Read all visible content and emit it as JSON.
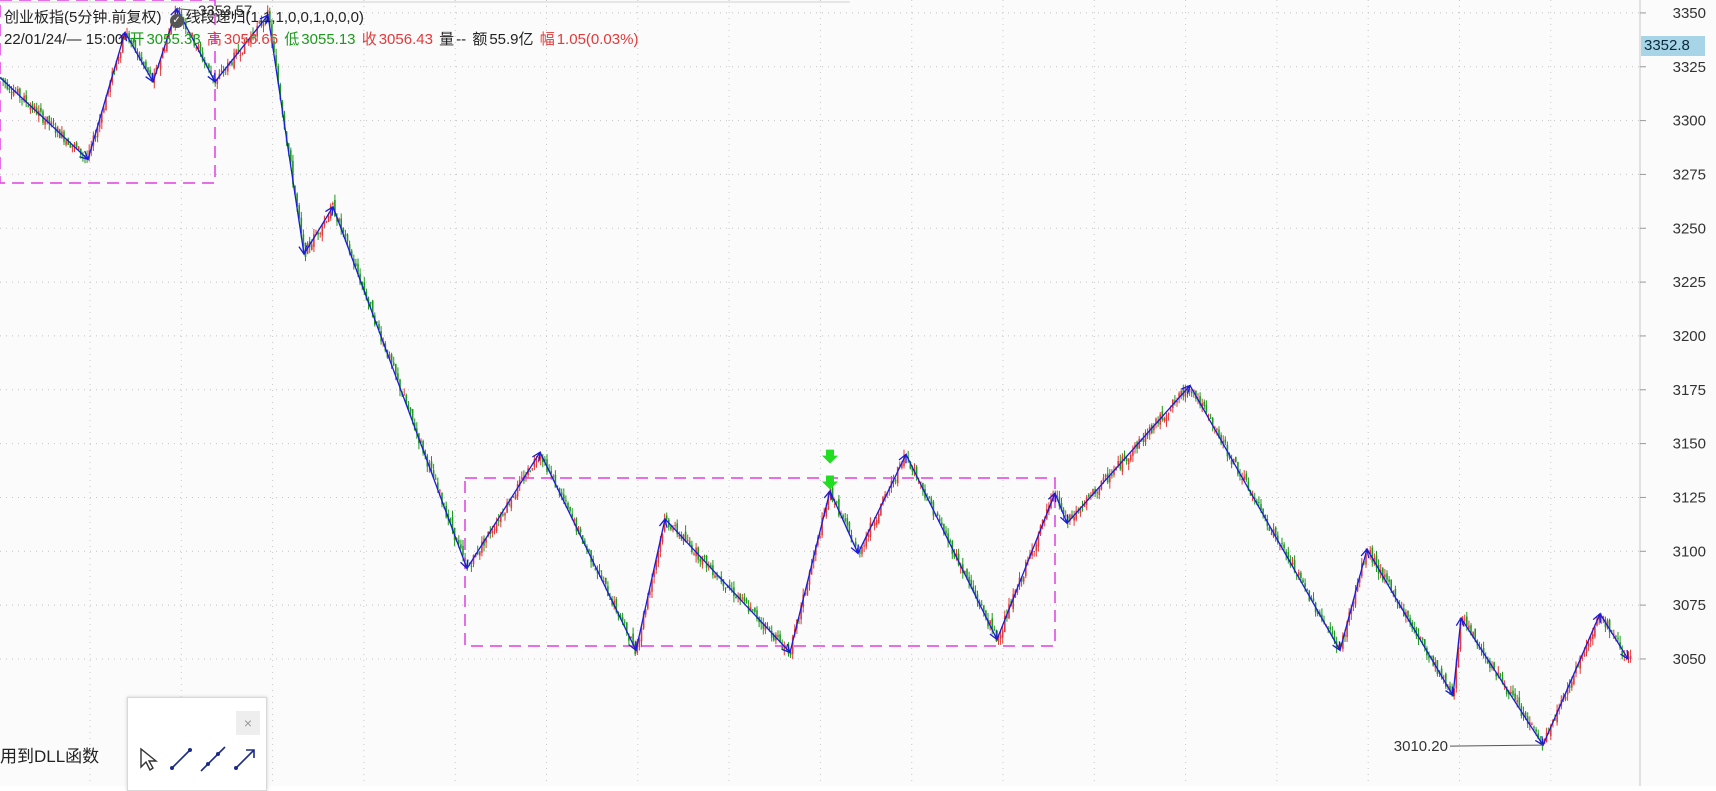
{
  "header": {
    "title": "创业板指(5分钟.前复权)",
    "indicator": "线段递归(1,1,1,0,0,1,0,0,0)",
    "datetime": "22/01/24/— 15:00",
    "open_label": "开",
    "open": "3055.33",
    "high_label": "高",
    "high": "3056.66",
    "low_label": "低",
    "low": "3055.13",
    "close_label": "收",
    "close": "3056.43",
    "volume_label": "量",
    "volume": "--",
    "amount_label": "额",
    "amount": "55.9亿",
    "amp_label": "幅",
    "amp": "1.05(0.03%)"
  },
  "price_tag": "3352.8",
  "tool_panel": {
    "dll_text": "用到DLL函数",
    "close_symbol": "×"
  },
  "colors": {
    "up": "#e23a3a",
    "down": "#1d9a1d",
    "segment": "#1b1bd8",
    "box": "#e040e0",
    "signal": "#22dd22"
  },
  "chart_data": {
    "type": "line",
    "ylim": [
      2991,
      3356
    ],
    "y_ticks": [
      3050,
      3075,
      3100,
      3125,
      3150,
      3175,
      3200,
      3225,
      3250,
      3275,
      3300,
      3325,
      3350
    ],
    "y_tick_labels": [
      "3050",
      "3075",
      "3100",
      "3125",
      "3150",
      "3175",
      "3200",
      "3225",
      "3250",
      "3275",
      "3300",
      "3325",
      "3350"
    ],
    "xlim": [
      0,
      1640
    ],
    "pivots": [
      {
        "x": 0,
        "y": 3320
      },
      {
        "x": 88,
        "y": 3282
      },
      {
        "x": 125,
        "y": 3341
      },
      {
        "x": 153,
        "y": 3318
      },
      {
        "x": 177,
        "y": 3352
      },
      {
        "x": 215,
        "y": 3318
      },
      {
        "x": 268,
        "y": 3349
      },
      {
        "x": 304,
        "y": 3238
      },
      {
        "x": 333,
        "y": 3260
      },
      {
        "x": 467,
        "y": 3092
      },
      {
        "x": 540,
        "y": 3146
      },
      {
        "x": 636,
        "y": 3054
      },
      {
        "x": 665,
        "y": 3115
      },
      {
        "x": 790,
        "y": 3053
      },
      {
        "x": 830,
        "y": 3128
      },
      {
        "x": 858,
        "y": 3099
      },
      {
        "x": 906,
        "y": 3145
      },
      {
        "x": 997,
        "y": 3059
      },
      {
        "x": 1055,
        "y": 3127
      },
      {
        "x": 1067,
        "y": 3113
      },
      {
        "x": 1190,
        "y": 3177
      },
      {
        "x": 1340,
        "y": 3054
      },
      {
        "x": 1367,
        "y": 3101
      },
      {
        "x": 1453,
        "y": 3033
      },
      {
        "x": 1461,
        "y": 3069
      },
      {
        "x": 1543,
        "y": 3010
      },
      {
        "x": 1600,
        "y": 3071
      },
      {
        "x": 1628,
        "y": 3050
      }
    ],
    "zones": [
      {
        "x1": 0,
        "x2": 215,
        "y1": 3271,
        "y2": 3356
      },
      {
        "x1": 465,
        "x2": 1055,
        "y1": 3056,
        "y2": 3134
      }
    ],
    "annotations": [
      {
        "text": "3353.57",
        "x": 198,
        "y": 3353
      },
      {
        "text": "3010.20",
        "x": 1448,
        "y": 3010
      }
    ],
    "signals": [
      {
        "x": 830,
        "y": 3143
      },
      {
        "x": 830,
        "y": 3131
      }
    ]
  }
}
